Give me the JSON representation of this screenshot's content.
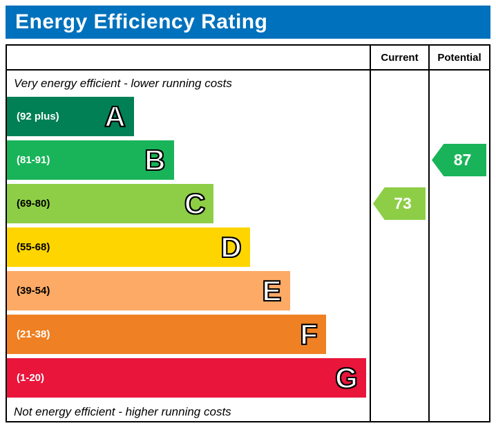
{
  "title": "Energy Efficiency Rating",
  "title_bar_color": "#0071bc",
  "header": {
    "current": "Current",
    "potential": "Potential"
  },
  "notes": {
    "top": "Very energy efficient - lower running costs",
    "bottom": "Not energy efficient - higher running costs"
  },
  "bands": [
    {
      "letter": "A",
      "range": "(92 plus)",
      "color": "#008054",
      "width_pct": 35,
      "label_color": "#ffffff"
    },
    {
      "letter": "B",
      "range": "(81-91)",
      "color": "#19b459",
      "width_pct": 46,
      "label_color": "#ffffff"
    },
    {
      "letter": "C",
      "range": "(69-80)",
      "color": "#8dce46",
      "width_pct": 57,
      "label_color": "#000000"
    },
    {
      "letter": "D",
      "range": "(55-68)",
      "color": "#ffd500",
      "width_pct": 67,
      "label_color": "#000000"
    },
    {
      "letter": "E",
      "range": "(39-54)",
      "color": "#fcaa65",
      "width_pct": 78,
      "label_color": "#000000"
    },
    {
      "letter": "F",
      "range": "(21-38)",
      "color": "#ef8023",
      "width_pct": 88,
      "label_color": "#ffffff"
    },
    {
      "letter": "G",
      "range": "(1-20)",
      "color": "#e9153b",
      "width_pct": 99,
      "label_color": "#ffffff"
    }
  ],
  "ratings": {
    "current": {
      "value": "73",
      "band": "C",
      "color": "#8dce46"
    },
    "potential": {
      "value": "87",
      "band": "B",
      "color": "#19b459"
    }
  },
  "chart_data": {
    "type": "bar",
    "title": "Energy Efficiency Rating",
    "categories": [
      "A (92 plus)",
      "B (81-91)",
      "C (69-80)",
      "D (55-68)",
      "E (39-54)",
      "F (21-38)",
      "G (1-20)"
    ],
    "values": [
      35,
      46,
      57,
      67,
      78,
      88,
      99
    ],
    "value_note": "bar widths are decorative band lengths in percent of plot width",
    "annotations": [
      {
        "label": "Current",
        "value": 73,
        "band": "C"
      },
      {
        "label": "Potential",
        "value": 87,
        "band": "B"
      }
    ],
    "legend_position": "none",
    "grid": false
  }
}
